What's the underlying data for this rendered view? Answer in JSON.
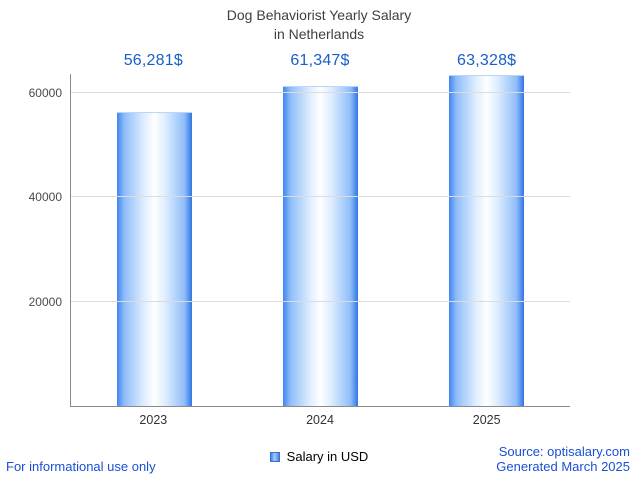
{
  "chart_data": {
    "type": "bar",
    "title": "Dog Behaviorist Yearly Salary in Netherlands",
    "title_lines": [
      "Dog Behaviorist Yearly Salary",
      "in Netherlands"
    ],
    "categories": [
      "2023",
      "2024",
      "2025"
    ],
    "values": [
      56281,
      61347,
      63328
    ],
    "value_labels": [
      "56,281$",
      "61,347$",
      "63,328$"
    ],
    "series_name": "Salary in USD",
    "xlabel": "",
    "ylabel": "",
    "ylim": [
      0,
      63600
    ],
    "yticks": [
      20000,
      40000,
      60000
    ],
    "grid": true,
    "legend_position": "bottom",
    "legend": "Salary in USD"
  },
  "footer": {
    "disclaimer": "For informational use only",
    "source": "Source: optisalary.com",
    "generated": "Generated March 2025"
  },
  "colors": {
    "bar_edge": "#3f85f0",
    "bar_center": "#ffffff",
    "value_label": "#1660c9",
    "footer_text": "#1a4fd6",
    "axis": "#8a8a8a",
    "gridline": "#dcdcdc",
    "title_text": "#3d4043"
  }
}
